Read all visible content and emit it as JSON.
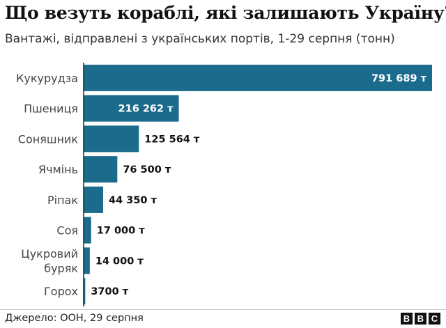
{
  "title": "Що везуть кораблі, які залишають Україну?",
  "subtitle": "Вантажі, відправлені з українських портів, 1-29 серпня (тонн)",
  "source": "Джерело: ООН, 29 серпня",
  "logo": [
    "B",
    "B",
    "C"
  ],
  "colors": {
    "bar": "#1a6b8c",
    "axis": "#222222",
    "label_inside": "#ffffff",
    "label_outside": "#111111"
  },
  "chart_data": {
    "type": "bar",
    "orientation": "horizontal",
    "title": "Що везуть кораблі, які залишають Україну?",
    "subtitle": "Вантажі, відправлені з українських портів, 1-29 серпня (тонн)",
    "categories": [
      [
        "Кукурудза"
      ],
      [
        "Пшениця"
      ],
      [
        "Соняшник"
      ],
      [
        "Ячмінь"
      ],
      [
        "Ріпак"
      ],
      [
        "Соя"
      ],
      [
        "Цукровий",
        "буряк"
      ],
      [
        "Горох"
      ]
    ],
    "values": [
      791689,
      216262,
      125564,
      76500,
      44350,
      17000,
      14000,
      3700
    ],
    "value_labels": [
      "791 689 т",
      "216 262 т",
      "125 564 т",
      "76 500 т",
      "44 350 т",
      "17 000 т",
      "14 000 т",
      "3700 т"
    ],
    "label_inside": [
      true,
      true,
      false,
      false,
      false,
      false,
      false,
      false
    ],
    "xlim": [
      0,
      791689
    ],
    "unit": "т"
  }
}
